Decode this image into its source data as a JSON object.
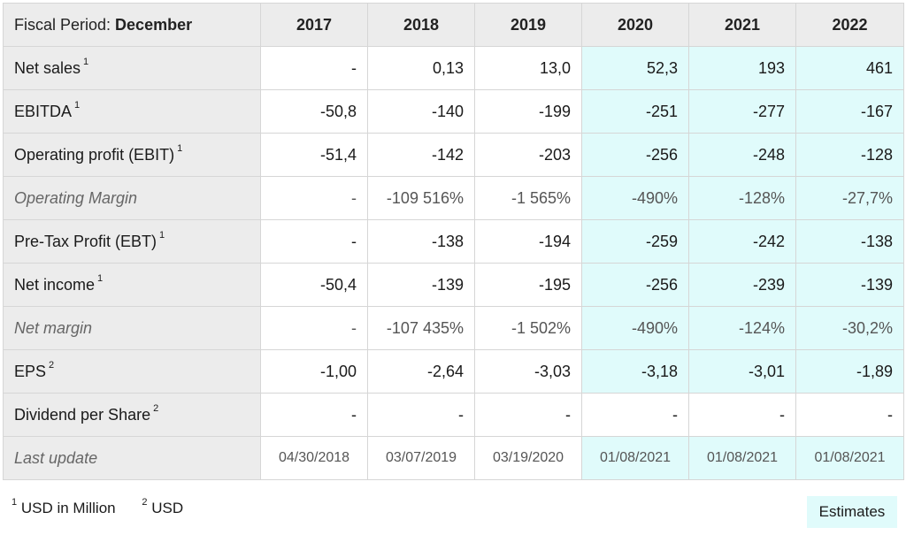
{
  "header": {
    "label_prefix": "Fiscal Period: ",
    "label_value": "December",
    "years": [
      "2017",
      "2018",
      "2019",
      "2020",
      "2021",
      "2022"
    ]
  },
  "rows": [
    {
      "label": "Net sales",
      "note": "1",
      "values": [
        "-",
        "0,13",
        "13,0",
        "52,3",
        "193",
        "461"
      ]
    },
    {
      "label": "EBITDA",
      "note": "1",
      "values": [
        "-50,8",
        "-140",
        "-199",
        "-251",
        "-277",
        "-167"
      ]
    },
    {
      "label": "Operating profit (EBIT)",
      "note": "1",
      "values": [
        "-51,4",
        "-142",
        "-203",
        "-256",
        "-248",
        "-128"
      ]
    },
    {
      "label": "Operating Margin",
      "note": "",
      "values": [
        "-",
        "-109 516%",
        "-1 565%",
        "-490%",
        "-128%",
        "-27,7%"
      ]
    },
    {
      "label": "Pre-Tax Profit (EBT)",
      "note": "1",
      "values": [
        "-",
        "-138",
        "-194",
        "-259",
        "-242",
        "-138"
      ]
    },
    {
      "label": "Net income",
      "note": "1",
      "values": [
        "-50,4",
        "-139",
        "-195",
        "-256",
        "-239",
        "-139"
      ]
    },
    {
      "label": "Net margin",
      "note": "",
      "values": [
        "-",
        "-107 435%",
        "-1 502%",
        "-490%",
        "-124%",
        "-30,2%"
      ]
    },
    {
      "label": "EPS",
      "note": "2",
      "values": [
        "-1,00",
        "-2,64",
        "-3,03",
        "-3,18",
        "-3,01",
        "-1,89"
      ]
    },
    {
      "label": "Dividend per Share",
      "note": "2",
      "values": [
        "-",
        "-",
        "-",
        "-",
        "-",
        "-"
      ]
    },
    {
      "label": "Last update",
      "note": "",
      "values": [
        "04/30/2018",
        "03/07/2019",
        "03/19/2020",
        "01/08/2021",
        "01/08/2021",
        "01/08/2021"
      ]
    }
  ],
  "footnotes": {
    "f1_mark": "1",
    "f1_text": "USD in Million",
    "f2_mark": "2",
    "f2_text": "USD"
  },
  "estimates_label": "Estimates",
  "colors": {
    "estimate_bg": "#e0fbfb",
    "label_bg": "#ececec"
  }
}
